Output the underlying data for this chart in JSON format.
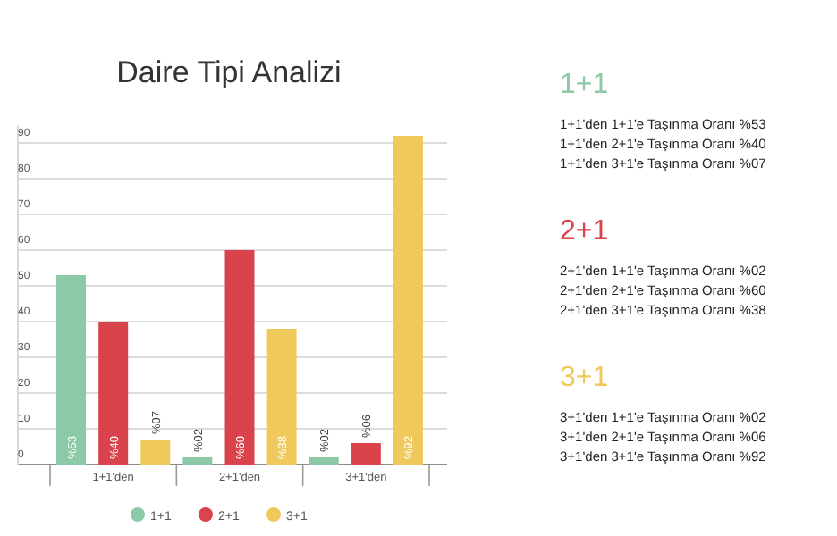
{
  "chart_data": {
    "type": "bar",
    "title": "Daire Tipi Analizi",
    "categories": [
      "1+1'den",
      "2+1'den",
      "3+1'den"
    ],
    "series": [
      {
        "name": "1+1",
        "color": "#8cc9a6",
        "values": [
          53,
          2,
          2
        ],
        "value_labels": [
          "%53",
          "%02",
          "%02"
        ]
      },
      {
        "name": "2+1",
        "color": "#d9434b",
        "values": [
          40,
          60,
          6
        ],
        "value_labels": [
          "%40",
          "%60",
          "%06"
        ]
      },
      {
        "name": "3+1",
        "color": "#f0c95c",
        "values": [
          7,
          38,
          92
        ],
        "value_labels": [
          "%07",
          "%38",
          "%92"
        ]
      }
    ],
    "ylim": [
      0,
      95
    ],
    "yticks": [
      0,
      10,
      20,
      30,
      40,
      50,
      60,
      70,
      80,
      90
    ],
    "grid": "y",
    "legend": "bottom",
    "annotations": [
      "1+1",
      "1+1'den 1+1'e Taşınma Oranı %53",
      "1+1'den 2+1'e Taşınma Oranı %40",
      "1+1'den 3+1'e Taşınma Oranı %07",
      "2+1",
      "2+1'den 1+1'e Taşınma Oranı %02",
      "2+1'den 2+1'e Taşınma Oranı %60",
      "2+1'den 3+1'e Taşınma Oranı %38",
      "3+1",
      "3+1'den 1+1'e Taşınma Oranı %02",
      "3+1'den 2+1'e Taşınma Oranı %06",
      "3+1'den 3+1'e Taşınma Oranı %92"
    ]
  }
}
